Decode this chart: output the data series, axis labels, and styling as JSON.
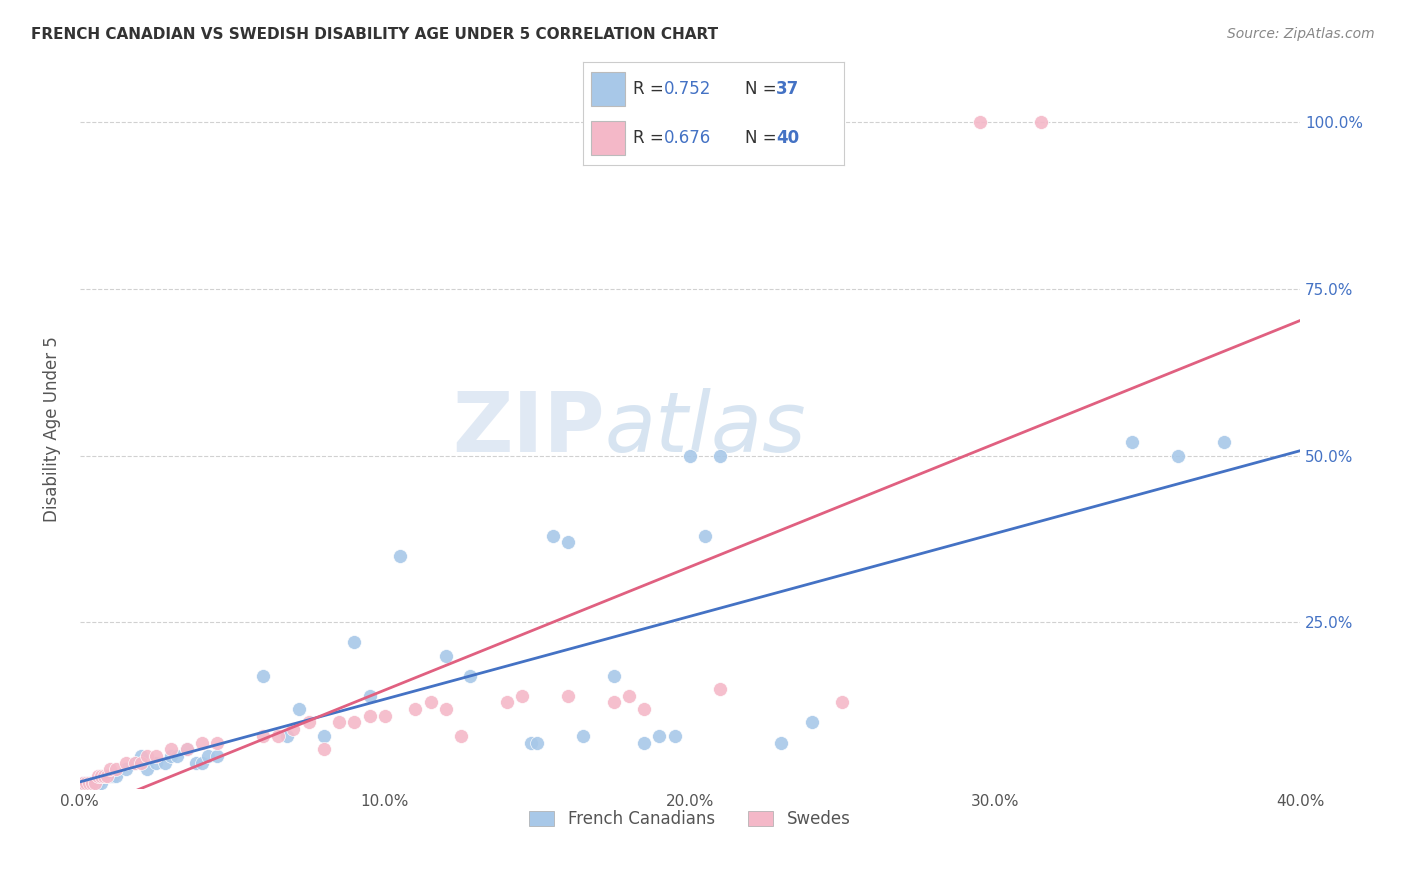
{
  "title": "FRENCH CANADIAN VS SWEDISH DISABILITY AGE UNDER 5 CORRELATION CHART",
  "source": "Source: ZipAtlas.com",
  "ylabel": "Disability Age Under 5",
  "xlim": [
    0.0,
    0.4
  ],
  "ylim": [
    0.0,
    1.08
  ],
  "xtick_values": [
    0.0,
    0.1,
    0.2,
    0.3,
    0.4
  ],
  "xtick_labels": [
    "0.0%",
    "10.0%",
    "20.0%",
    "30.0%",
    "40.0%"
  ],
  "ytick_values": [
    0.25,
    0.5,
    0.75,
    1.0
  ],
  "ytick_labels_right": [
    "25.0%",
    "50.0%",
    "75.0%",
    "100.0%"
  ],
  "french_canadian_color": "#a8c8e8",
  "swedish_color": "#f4b8c8",
  "french_canadian_line_color": "#4472c4",
  "swedish_line_color": "#e06080",
  "legend_R_color": "#4472c4",
  "legend_N_color": "#4472c4",
  "legend_label_french": "French Canadians",
  "legend_label_swedish": "Swedes",
  "watermark_zip": "ZIP",
  "watermark_atlas": "atlas",
  "background_color": "#ffffff",
  "grid_color": "#cccccc",
  "title_fontsize": 11,
  "right_tick_color": "#4472c4",
  "french_x": [
    0.001,
    0.002,
    0.003,
    0.004,
    0.005,
    0.006,
    0.007,
    0.008,
    0.009,
    0.01,
    0.011,
    0.012,
    0.015,
    0.018,
    0.02,
    0.022,
    0.025,
    0.028,
    0.03,
    0.032,
    0.035,
    0.038,
    0.04,
    0.042,
    0.045,
    0.06,
    0.068,
    0.072,
    0.08,
    0.09,
    0.095,
    0.105,
    0.12,
    0.128,
    0.148,
    0.15,
    0.155,
    0.16,
    0.165,
    0.175,
    0.185,
    0.19,
    0.195,
    0.2,
    0.205,
    0.21,
    0.23,
    0.24,
    0.345,
    0.36,
    0.375
  ],
  "french_y": [
    0.01,
    0.01,
    0.01,
    0.01,
    0.01,
    0.01,
    0.01,
    0.02,
    0.02,
    0.02,
    0.02,
    0.02,
    0.03,
    0.04,
    0.05,
    0.03,
    0.04,
    0.04,
    0.05,
    0.05,
    0.06,
    0.04,
    0.04,
    0.05,
    0.05,
    0.17,
    0.08,
    0.12,
    0.08,
    0.22,
    0.14,
    0.35,
    0.2,
    0.17,
    0.07,
    0.07,
    0.38,
    0.37,
    0.08,
    0.17,
    0.07,
    0.08,
    0.08,
    0.5,
    0.38,
    0.5,
    0.07,
    0.1,
    0.52,
    0.5,
    0.52
  ],
  "swedish_x": [
    0.001,
    0.002,
    0.003,
    0.004,
    0.005,
    0.006,
    0.007,
    0.008,
    0.009,
    0.01,
    0.012,
    0.015,
    0.018,
    0.02,
    0.022,
    0.025,
    0.03,
    0.035,
    0.04,
    0.045,
    0.06,
    0.065,
    0.07,
    0.075,
    0.08,
    0.085,
    0.09,
    0.095,
    0.1,
    0.11,
    0.115,
    0.12,
    0.125,
    0.14,
    0.145,
    0.16,
    0.175,
    0.18,
    0.185,
    0.21,
    0.25,
    0.295,
    0.315
  ],
  "swedish_y": [
    0.01,
    0.01,
    0.01,
    0.01,
    0.01,
    0.02,
    0.02,
    0.02,
    0.02,
    0.03,
    0.03,
    0.04,
    0.04,
    0.04,
    0.05,
    0.05,
    0.06,
    0.06,
    0.07,
    0.07,
    0.08,
    0.08,
    0.09,
    0.1,
    0.06,
    0.1,
    0.1,
    0.11,
    0.11,
    0.12,
    0.13,
    0.12,
    0.08,
    0.13,
    0.14,
    0.14,
    0.13,
    0.14,
    0.12,
    0.15,
    0.13,
    1.0,
    1.0
  ]
}
